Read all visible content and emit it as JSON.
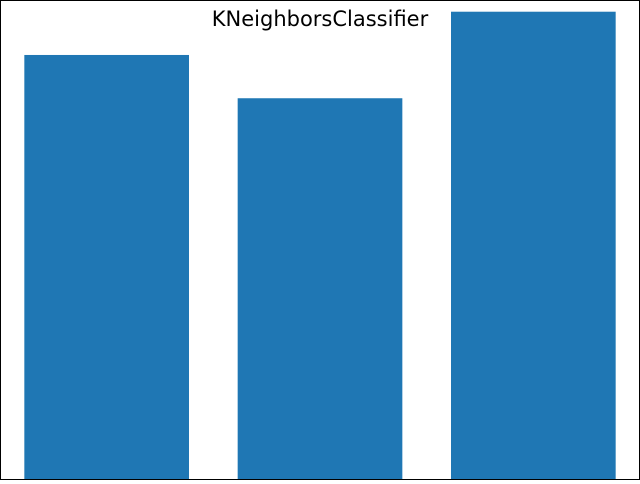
{
  "chart_data": {
    "type": "bar",
    "title": "KNeighborsClassifier",
    "categories": [
      "",
      "",
      ""
    ],
    "values": [
      0.835,
      0.75,
      0.92
    ],
    "ylim": [
      0,
      0.943
    ],
    "bar_color": "#1f77b4",
    "frame_color": "#000000",
    "grid": false,
    "legend": "none",
    "xlabel": "",
    "ylabel": ""
  }
}
